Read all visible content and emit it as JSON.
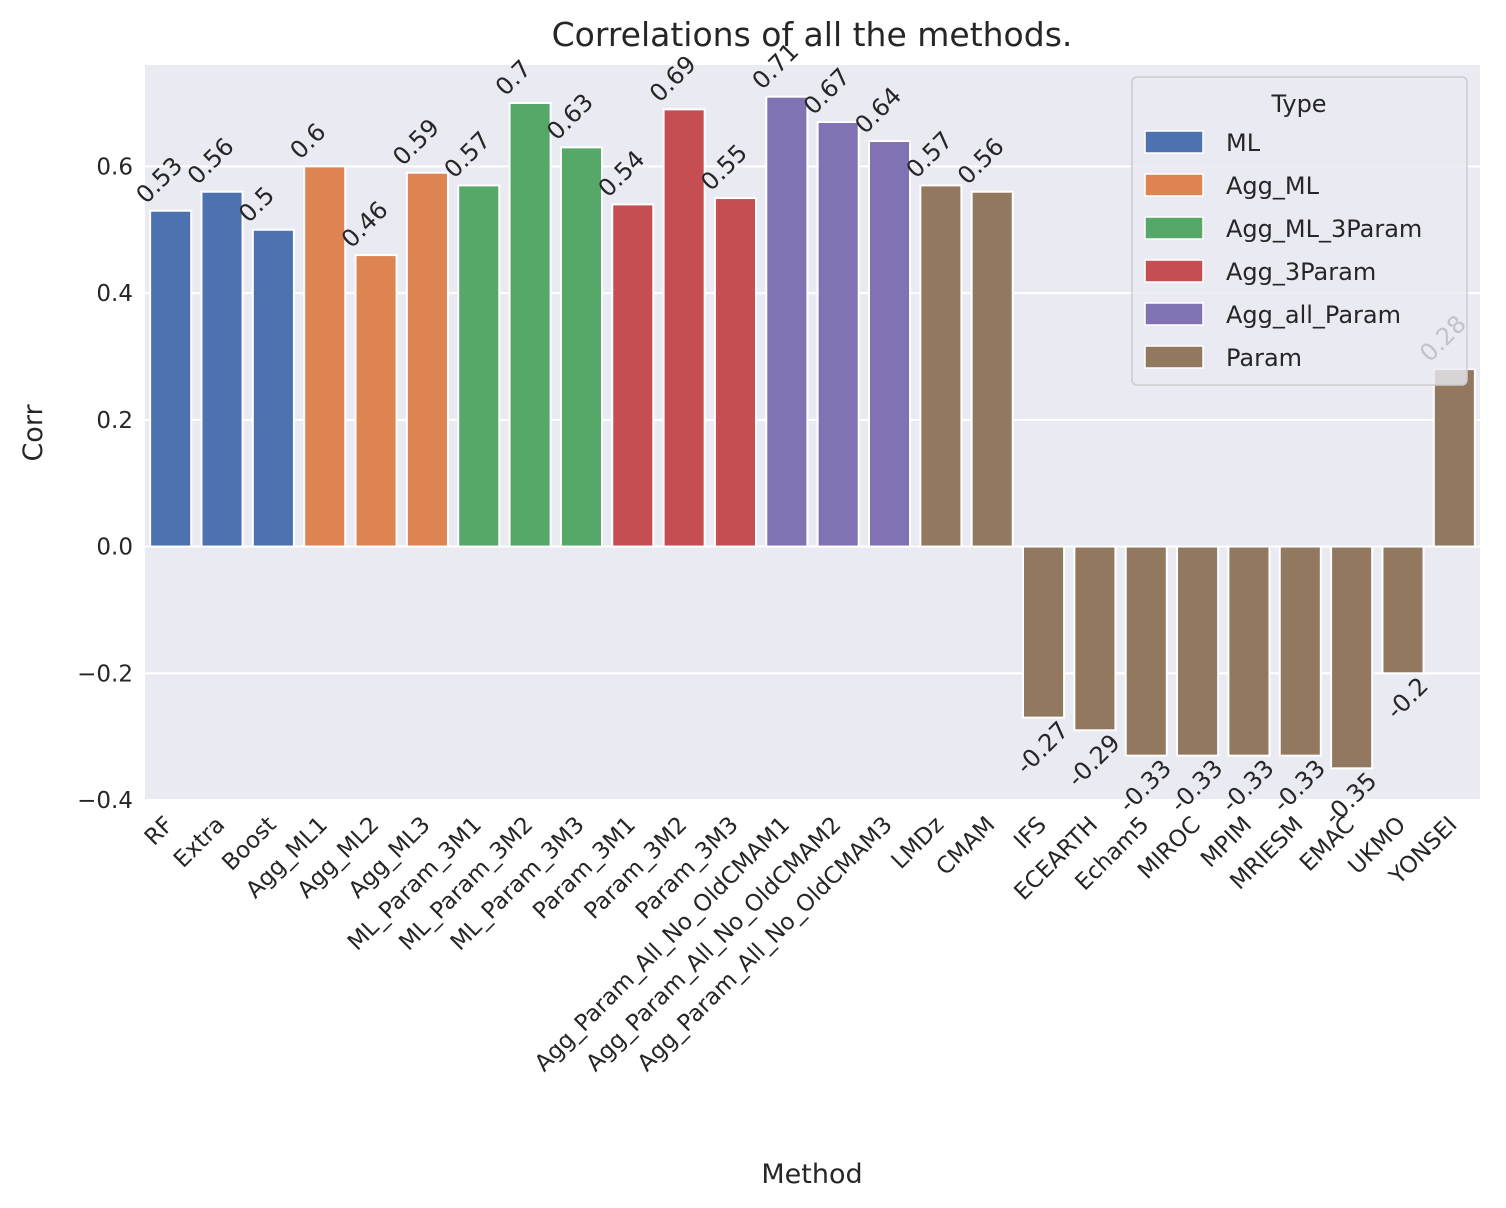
{
  "chart_data": {
    "type": "bar",
    "title": "Correlations of all the methods.",
    "xlabel": "Method",
    "ylabel": "Corr",
    "ylim": [
      -0.4,
      0.76
    ],
    "yticks": [
      -0.4,
      -0.2,
      0.0,
      0.2,
      0.4,
      0.6
    ],
    "ytick_labels": [
      "−0.4",
      "−0.2",
      "0.0",
      "0.2",
      "0.4",
      "0.6"
    ],
    "grid": true,
    "legend": {
      "title": "Type",
      "placement": "top-right",
      "entries": [
        {
          "name": "ML",
          "color": "#4c72b0"
        },
        {
          "name": "Agg_ML",
          "color": "#dd8452"
        },
        {
          "name": "Agg_ML_3Param",
          "color": "#55a868"
        },
        {
          "name": "Agg_3Param",
          "color": "#c44e52"
        },
        {
          "name": "Agg_all_Param",
          "color": "#8172b3"
        },
        {
          "name": "Param",
          "color": "#937860"
        }
      ]
    },
    "categories": [
      "RF",
      "Extra",
      "Boost",
      "Agg_ML1",
      "Agg_ML2",
      "Agg_ML3",
      "ML_Param_3M1",
      "ML_Param_3M2",
      "ML_Param_3M3",
      "Param_3M1",
      "Param_3M2",
      "Param_3M3",
      "Agg_Param_All_No_OldCMAM1",
      "Agg_Param_All_No_OldCMAM2",
      "Agg_Param_All_No_OldCMAM3",
      "LMDz",
      "CMAM",
      "IFS",
      "ECEARTH",
      "Echam5",
      "MIROC",
      "MPIM",
      "MRIESM",
      "EMAC",
      "UKMO",
      "YONSEI"
    ],
    "values": [
      0.53,
      0.56,
      0.5,
      0.6,
      0.46,
      0.59,
      0.57,
      0.7,
      0.63,
      0.54,
      0.69,
      0.55,
      0.71,
      0.67,
      0.64,
      0.57,
      0.56,
      -0.27,
      -0.29,
      -0.33,
      -0.33,
      -0.33,
      -0.33,
      -0.35,
      -0.2,
      0.28
    ],
    "value_labels": [
      "0.53",
      "0.56",
      "0.5",
      "0.6",
      "0.46",
      "0.59",
      "0.57",
      "0.7",
      "0.63",
      "0.54",
      "0.69",
      "0.55",
      "0.71",
      "0.67",
      "0.64",
      "0.57",
      "0.56",
      "-0.27",
      "-0.29",
      "-0.33",
      "-0.33",
      "-0.33",
      "-0.33",
      "-0.35",
      "-0.2",
      "0.28"
    ],
    "types": [
      "ML",
      "ML",
      "ML",
      "Agg_ML",
      "Agg_ML",
      "Agg_ML",
      "Agg_ML_3Param",
      "Agg_ML_3Param",
      "Agg_ML_3Param",
      "Agg_3Param",
      "Agg_3Param",
      "Agg_3Param",
      "Agg_all_Param",
      "Agg_all_Param",
      "Agg_all_Param",
      "Param",
      "Param",
      "Param",
      "Param",
      "Param",
      "Param",
      "Param",
      "Param",
      "Param",
      "Param",
      "Param"
    ]
  },
  "colors": {
    "plot_background": "#eaeaf2",
    "grid": "#ffffff"
  }
}
